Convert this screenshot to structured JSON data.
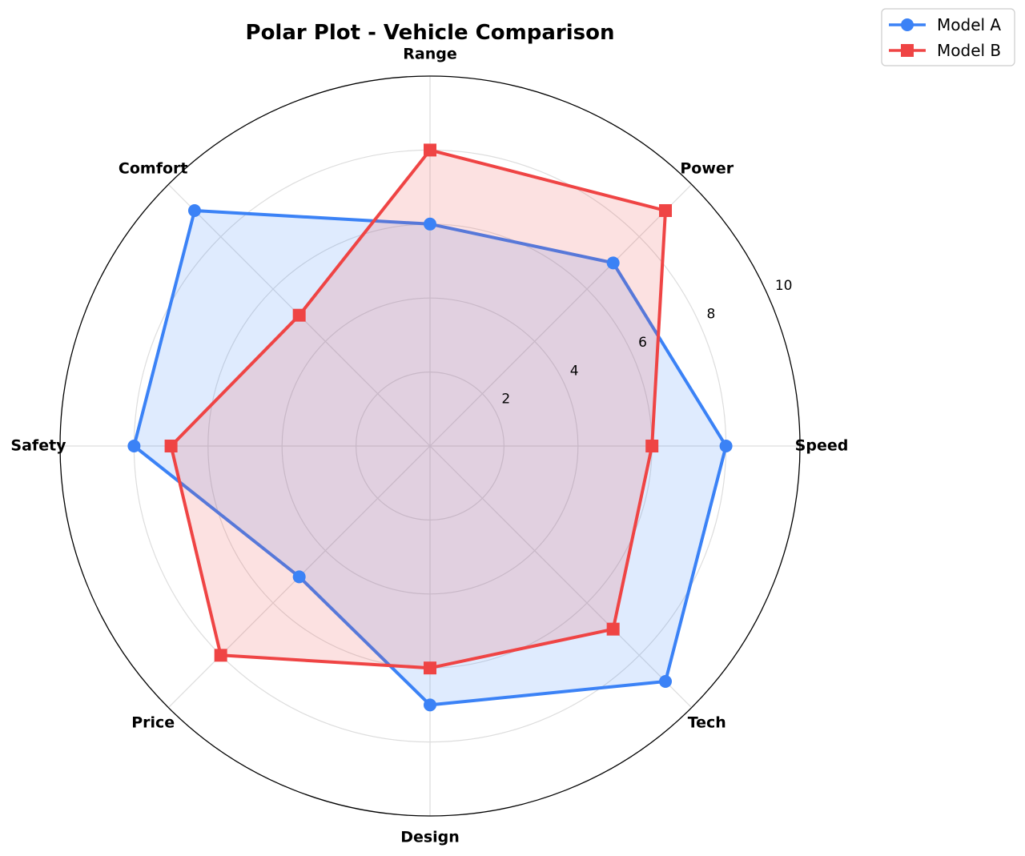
{
  "chart_data": {
    "type": "radar",
    "title": "Polar Plot - Vehicle Comparison",
    "categories": [
      "Speed",
      "Power",
      "Range",
      "Comfort",
      "Safety",
      "Price",
      "Design",
      "Tech"
    ],
    "rlim": [
      0,
      10
    ],
    "rticks": [
      2,
      4,
      6,
      8,
      10
    ],
    "grid": true,
    "legend_position": "top-right",
    "series": [
      {
        "name": "Model A",
        "values": [
          8,
          7,
          6,
          9,
          8,
          5,
          7,
          9
        ],
        "color": "#3b82f6",
        "marker": "circle"
      },
      {
        "name": "Model B",
        "values": [
          6,
          9,
          8,
          5,
          7,
          8,
          6,
          7
        ],
        "color": "#ef4444",
        "marker": "square"
      }
    ]
  }
}
